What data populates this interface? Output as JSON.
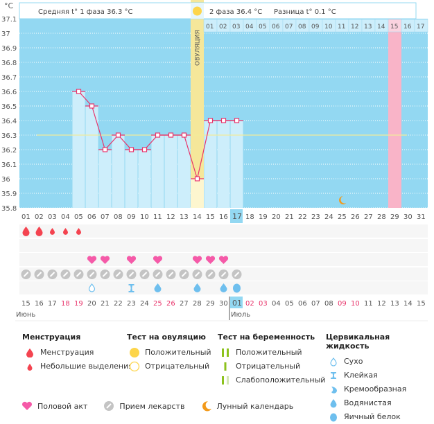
{
  "header": {
    "unit_label": "°C",
    "phase1_text": "Средняя t° 1 фаза 36.3 °C",
    "phase2_text": "2 фаза 36.4 °C",
    "difference_text": "Разница t° 0.1 °C",
    "ovulation_label": "ОВУЛЯЦИЯ"
  },
  "chart_data": {
    "type": "line",
    "title": "",
    "xlabel": "",
    "ylabel": "°C",
    "ylim": [
      35.8,
      37.1
    ],
    "yticks": [
      "37.1",
      "37",
      "36.9",
      "36.8",
      "36.7",
      "36.6",
      "36.5",
      "36.4",
      "36.3",
      "36.2",
      "36.1",
      "36",
      "35.9",
      "35.8"
    ],
    "grid": true,
    "cycle_days": [
      "01",
      "02",
      "03",
      "04",
      "05",
      "06",
      "07",
      "08",
      "09",
      "10",
      "11",
      "12",
      "13",
      "14",
      "15",
      "16",
      "17",
      "18",
      "19",
      "20",
      "21",
      "22",
      "23",
      "24",
      "25",
      "26",
      "27",
      "28",
      "29",
      "30",
      "31"
    ],
    "current_cycle_day": "17",
    "series": [
      {
        "name": "Базальная температура",
        "color": "#e8336a",
        "points": [
          {
            "day": 5,
            "value": 36.6
          },
          {
            "day": 6,
            "value": 36.5
          },
          {
            "day": 7,
            "value": 36.2
          },
          {
            "day": 8,
            "value": 36.3
          },
          {
            "day": 9,
            "value": 36.2
          },
          {
            "day": 10,
            "value": 36.2
          },
          {
            "day": 11,
            "value": 36.3
          },
          {
            "day": 12,
            "value": 36.3
          },
          {
            "day": 13,
            "value": 36.3
          },
          {
            "day": 14,
            "value": 36.0
          },
          {
            "day": 15,
            "value": 36.4
          },
          {
            "day": 16,
            "value": 36.4
          },
          {
            "day": 17,
            "value": 36.4
          }
        ]
      }
    ],
    "coverline": 36.3,
    "ovulation_day": 14,
    "expected_period_day": 29,
    "moon_day": 25,
    "second_phase_days": [
      "01",
      "02",
      "03",
      "04",
      "05",
      "06",
      "07",
      "08",
      "09",
      "10",
      "11",
      "12",
      "13",
      "14",
      "15",
      "16",
      "17"
    ],
    "second_phase_highlight": "15",
    "calendar_dates": [
      "15",
      "16",
      "17",
      "18",
      "19",
      "20",
      "21",
      "22",
      "23",
      "24",
      "25",
      "26",
      "27",
      "28",
      "29",
      "30",
      "01",
      "02",
      "03",
      "04",
      "05",
      "06",
      "07",
      "08",
      "09",
      "10",
      "11",
      "12",
      "13",
      "14",
      "15"
    ],
    "weekend_indexes": [
      3,
      4,
      10,
      11,
      17,
      18,
      24,
      25
    ],
    "today_index": 16,
    "months": [
      {
        "label": "Июнь",
        "start_index": 0
      },
      {
        "label": "Июль",
        "start_index": 16
      }
    ],
    "menstruation": [
      {
        "day": 1,
        "type": "heavy"
      },
      {
        "day": 2,
        "type": "heavy"
      },
      {
        "day": 3,
        "type": "light"
      },
      {
        "day": 4,
        "type": "light"
      },
      {
        "day": 5,
        "type": "light"
      }
    ],
    "intercourse_days": [
      6,
      7,
      9,
      11,
      14,
      15,
      16
    ],
    "medication_days": [
      1,
      2,
      3,
      4,
      5,
      6,
      7,
      8,
      9,
      10,
      11,
      12,
      13,
      14,
      15,
      16,
      17
    ],
    "cervical_fluid": [
      {
        "day": 6,
        "type": "dry"
      },
      {
        "day": 9,
        "type": "sticky"
      },
      {
        "day": 11,
        "type": "watery"
      },
      {
        "day": 14,
        "type": "watery"
      },
      {
        "day": 16,
        "type": "watery"
      },
      {
        "day": 17,
        "type": "egg-white"
      }
    ]
  },
  "legend": {
    "menstruation": {
      "title": "Менструация",
      "items": [
        "Менструация",
        "Небольшие выделения"
      ]
    },
    "ovulation_test": {
      "title": "Тест на овуляцию",
      "items": [
        "Положительный",
        "Отрицательный"
      ]
    },
    "pregnancy_test": {
      "title": "Тест на беременность",
      "items": [
        "Положительный",
        "Отрицательный",
        "Слабоположительный"
      ]
    },
    "cervical_fluid": {
      "title": "Цервикальная жидкость",
      "items": [
        "Сухо",
        "Клейкая",
        "Кремообразная",
        "Водянистая",
        "Яичный белок"
      ]
    },
    "other": [
      "Половой акт",
      "Прием лекарств",
      "Лунный календарь"
    ]
  },
  "colors": {
    "chart_bg": "#93d8f2",
    "bar_fill": "#cdeefb",
    "line": "#e8336a",
    "ovulation": "#f5e79a",
    "period": "#f9b4c8",
    "coverline": "#f2ec9a",
    "weekend": "#e8336a",
    "heart": "#f55aa8",
    "drop_red": "#f44450",
    "pill": "#c4c4c4",
    "fluid": "#6ebfee",
    "moon": "#f39a1a",
    "sun": "#fdd54a",
    "preg_green": "#8cc21d",
    "preg_light": "#d4e7b5"
  }
}
